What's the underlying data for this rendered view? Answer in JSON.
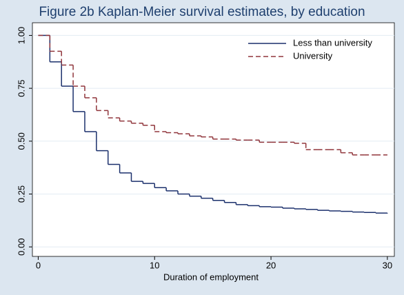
{
  "chart_data": {
    "type": "step",
    "title": "Figure 2b Kaplan-Meier survival estimates, by education",
    "x_label": "Duration of employment",
    "x": [
      0,
      1,
      2,
      3,
      4,
      5,
      6,
      7,
      8,
      9,
      10,
      11,
      12,
      13,
      14,
      15,
      16,
      17,
      18,
      19,
      20,
      21,
      22,
      23,
      24,
      25,
      26,
      27,
      28,
      29,
      30
    ],
    "series": [
      {
        "name": "Less than university",
        "color": "#1a2f6b",
        "style": "solid",
        "values": [
          1.0,
          0.875,
          0.76,
          0.64,
          0.545,
          0.455,
          0.39,
          0.35,
          0.31,
          0.3,
          0.28,
          0.265,
          0.25,
          0.24,
          0.23,
          0.22,
          0.21,
          0.2,
          0.195,
          0.19,
          0.188,
          0.183,
          0.18,
          0.177,
          0.173,
          0.17,
          0.168,
          0.165,
          0.163,
          0.16,
          0.158
        ]
      },
      {
        "name": "University",
        "color": "#90353b",
        "style": "dashed",
        "values": [
          1.0,
          0.925,
          0.86,
          0.76,
          0.705,
          0.645,
          0.61,
          0.595,
          0.585,
          0.575,
          0.545,
          0.54,
          0.535,
          0.525,
          0.52,
          0.51,
          0.51,
          0.505,
          0.505,
          0.495,
          0.495,
          0.495,
          0.49,
          0.46,
          0.46,
          0.46,
          0.445,
          0.435,
          0.435,
          0.435,
          0.435
        ]
      }
    ],
    "xlim": [
      -0.5,
      30.6
    ],
    "xticks": [
      0,
      10,
      20,
      30
    ],
    "ylim": [
      -0.045,
      1.06
    ],
    "yticks": [
      {
        "value": 0,
        "label": "0.00"
      },
      {
        "value": 0.25,
        "label": "0.25"
      },
      {
        "value": 0.5,
        "label": "0.50"
      },
      {
        "value": 0.75,
        "label": "0.75"
      },
      {
        "value": 1,
        "label": "1.00"
      }
    ],
    "grid": true,
    "legend": "top-right"
  }
}
